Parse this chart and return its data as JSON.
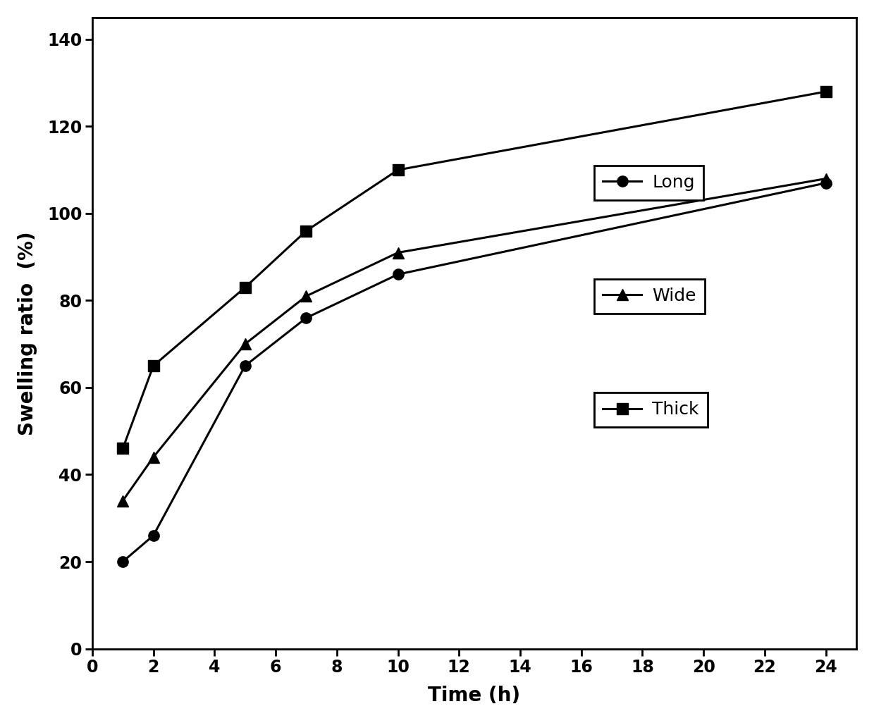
{
  "series": [
    {
      "label": "Long",
      "x": [
        1,
        2,
        5,
        7,
        10,
        24
      ],
      "y": [
        20,
        26,
        65,
        76,
        86,
        107
      ],
      "marker": "o",
      "linestyle": "-"
    },
    {
      "label": "Wide",
      "x": [
        1,
        2,
        5,
        7,
        10,
        24
      ],
      "y": [
        34,
        44,
        70,
        81,
        91,
        108
      ],
      "marker": "^",
      "linestyle": "-"
    },
    {
      "label": "Thick",
      "x": [
        1,
        2,
        5,
        7,
        10,
        24
      ],
      "y": [
        46,
        65,
        83,
        96,
        110,
        128
      ],
      "marker": "s",
      "linestyle": "-"
    }
  ],
  "xlabel": "Time (h)",
  "ylabel": "Swelling ratio  (%)",
  "xlim": [
    0,
    25
  ],
  "ylim": [
    0,
    145
  ],
  "xticks": [
    0,
    2,
    4,
    6,
    8,
    10,
    12,
    14,
    16,
    18,
    20,
    22,
    24
  ],
  "yticks": [
    0,
    20,
    40,
    60,
    80,
    100,
    120,
    140
  ],
  "line_color": "#000000",
  "marker_color": "#000000",
  "marker_size": 11,
  "linewidth": 2.2,
  "legend_fontsize": 18,
  "axis_label_fontsize": 20,
  "tick_fontsize": 17,
  "background_color": "#ffffff"
}
